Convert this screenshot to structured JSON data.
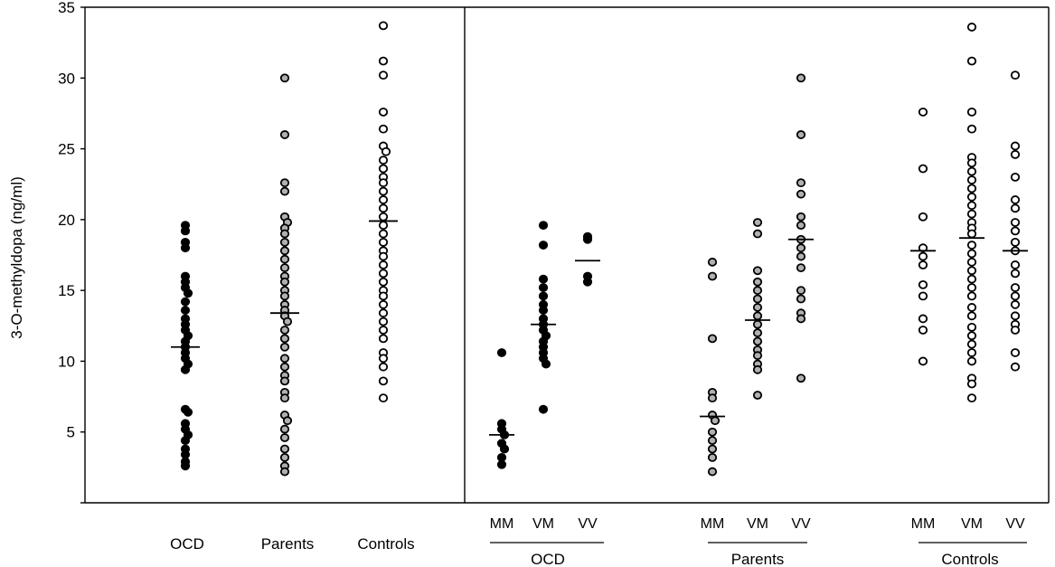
{
  "chart_data": {
    "type": "scatter",
    "ylabel": "3-O-methyldopa (ng/ml)",
    "ylim": [
      0,
      35
    ],
    "yticks": [
      5,
      10,
      15,
      20,
      25,
      30,
      35
    ],
    "colors": {
      "OCD": "#000000",
      "Parents": "#b0b0b0",
      "Controls": "#ffffff",
      "outline": "#000000"
    },
    "panels": [
      {
        "name": "by-group",
        "groups": [
          {
            "label": "OCD",
            "fill": "OCD",
            "median": 11.0,
            "values": [
              19.6,
              19.2,
              18.4,
              18.0,
              16.0,
              15.6,
              15.2,
              14.8,
              14.2,
              13.6,
              13.0,
              12.6,
              12.2,
              11.8,
              11.4,
              11.0,
              10.6,
              10.2,
              9.8,
              9.4,
              6.6,
              6.4,
              5.6,
              5.2,
              4.8,
              4.4,
              3.8,
              3.4,
              2.9,
              2.6
            ]
          },
          {
            "label": "Parents",
            "fill": "Parents",
            "median": 13.4,
            "values": [
              30.0,
              26.0,
              22.6,
              22.0,
              20.2,
              19.8,
              19.4,
              19.0,
              18.4,
              17.8,
              17.2,
              16.6,
              16.0,
              15.6,
              15.0,
              14.6,
              14.0,
              13.6,
              13.2,
              12.8,
              12.2,
              11.6,
              11.0,
              10.2,
              9.6,
              9.0,
              8.6,
              7.8,
              7.4,
              6.2,
              5.8,
              5.2,
              4.6,
              3.8,
              3.2,
              2.6,
              2.2
            ]
          },
          {
            "label": "Controls",
            "fill": "Controls",
            "median": 19.9,
            "values": [
              33.7,
              31.2,
              30.2,
              27.6,
              26.4,
              25.2,
              24.8,
              24.2,
              23.6,
              23.0,
              22.6,
              22.0,
              21.4,
              20.8,
              20.2,
              19.6,
              19.0,
              18.4,
              17.8,
              17.4,
              16.8,
              16.2,
              15.6,
              15.0,
              14.6,
              14.0,
              13.4,
              12.8,
              12.2,
              11.6,
              10.6,
              10.2,
              9.6,
              8.6,
              7.4
            ]
          }
        ]
      },
      {
        "name": "by-genotype",
        "sections": [
          {
            "label": "OCD",
            "fill": "OCD",
            "genotypes": [
              {
                "label": "MM",
                "median": 4.8,
                "values": [
                  10.6,
                  5.6,
                  5.2,
                  4.8,
                  4.2,
                  3.8,
                  3.2,
                  2.7
                ]
              },
              {
                "label": "VM",
                "median": 12.6,
                "values": [
                  19.6,
                  18.2,
                  15.8,
                  15.2,
                  14.6,
                  14.0,
                  13.6,
                  13.0,
                  12.6,
                  12.2,
                  11.8,
                  11.4,
                  11.0,
                  10.6,
                  10.2,
                  9.8,
                  6.6
                ]
              },
              {
                "label": "VV",
                "median": 17.1,
                "values": [
                  18.8,
                  18.6,
                  16.0,
                  15.6
                ]
              }
            ]
          },
          {
            "label": "Parents",
            "fill": "Parents",
            "genotypes": [
              {
                "label": "MM",
                "median": 6.1,
                "values": [
                  17.0,
                  16.0,
                  11.6,
                  7.8,
                  7.4,
                  6.2,
                  5.8,
                  5.0,
                  4.4,
                  3.8,
                  3.2,
                  2.2
                ]
              },
              {
                "label": "VM",
                "median": 12.9,
                "values": [
                  19.8,
                  19.0,
                  16.4,
                  15.6,
                  15.0,
                  14.4,
                  13.8,
                  13.2,
                  12.6,
                  12.0,
                  11.4,
                  10.8,
                  10.4,
                  9.8,
                  9.4,
                  7.6
                ]
              },
              {
                "label": "VV",
                "median": 18.6,
                "values": [
                  30.0,
                  26.0,
                  22.6,
                  21.8,
                  20.2,
                  19.6,
                  18.6,
                  18.0,
                  17.4,
                  16.6,
                  15.0,
                  14.4,
                  13.4,
                  13.0,
                  8.8
                ]
              }
            ]
          },
          {
            "label": "Controls",
            "fill": "Controls",
            "genotypes": [
              {
                "label": "MM",
                "median": 17.8,
                "values": [
                  27.6,
                  23.6,
                  20.2,
                  18.0,
                  17.4,
                  16.8,
                  15.4,
                  14.6,
                  13.0,
                  12.2,
                  10.0
                ]
              },
              {
                "label": "VM",
                "median": 18.7,
                "values": [
                  33.6,
                  31.2,
                  27.6,
                  26.4,
                  24.4,
                  24.0,
                  23.4,
                  22.8,
                  22.2,
                  21.6,
                  21.0,
                  20.4,
                  19.8,
                  19.4,
                  19.0,
                  18.2,
                  17.6,
                  17.0,
                  16.4,
                  15.8,
                  15.2,
                  14.6,
                  13.8,
                  13.2,
                  12.4,
                  11.8,
                  11.2,
                  10.6,
                  10.0,
                  8.8,
                  8.4,
                  7.4
                ]
              },
              {
                "label": "VV",
                "median": 17.8,
                "values": [
                  30.2,
                  25.2,
                  24.6,
                  23.0,
                  21.4,
                  20.8,
                  19.8,
                  19.2,
                  18.4,
                  17.8,
                  16.8,
                  16.2,
                  15.2,
                  14.6,
                  14.0,
                  13.2,
                  12.6,
                  12.2,
                  10.6,
                  9.6
                ]
              }
            ]
          }
        ]
      }
    ]
  }
}
